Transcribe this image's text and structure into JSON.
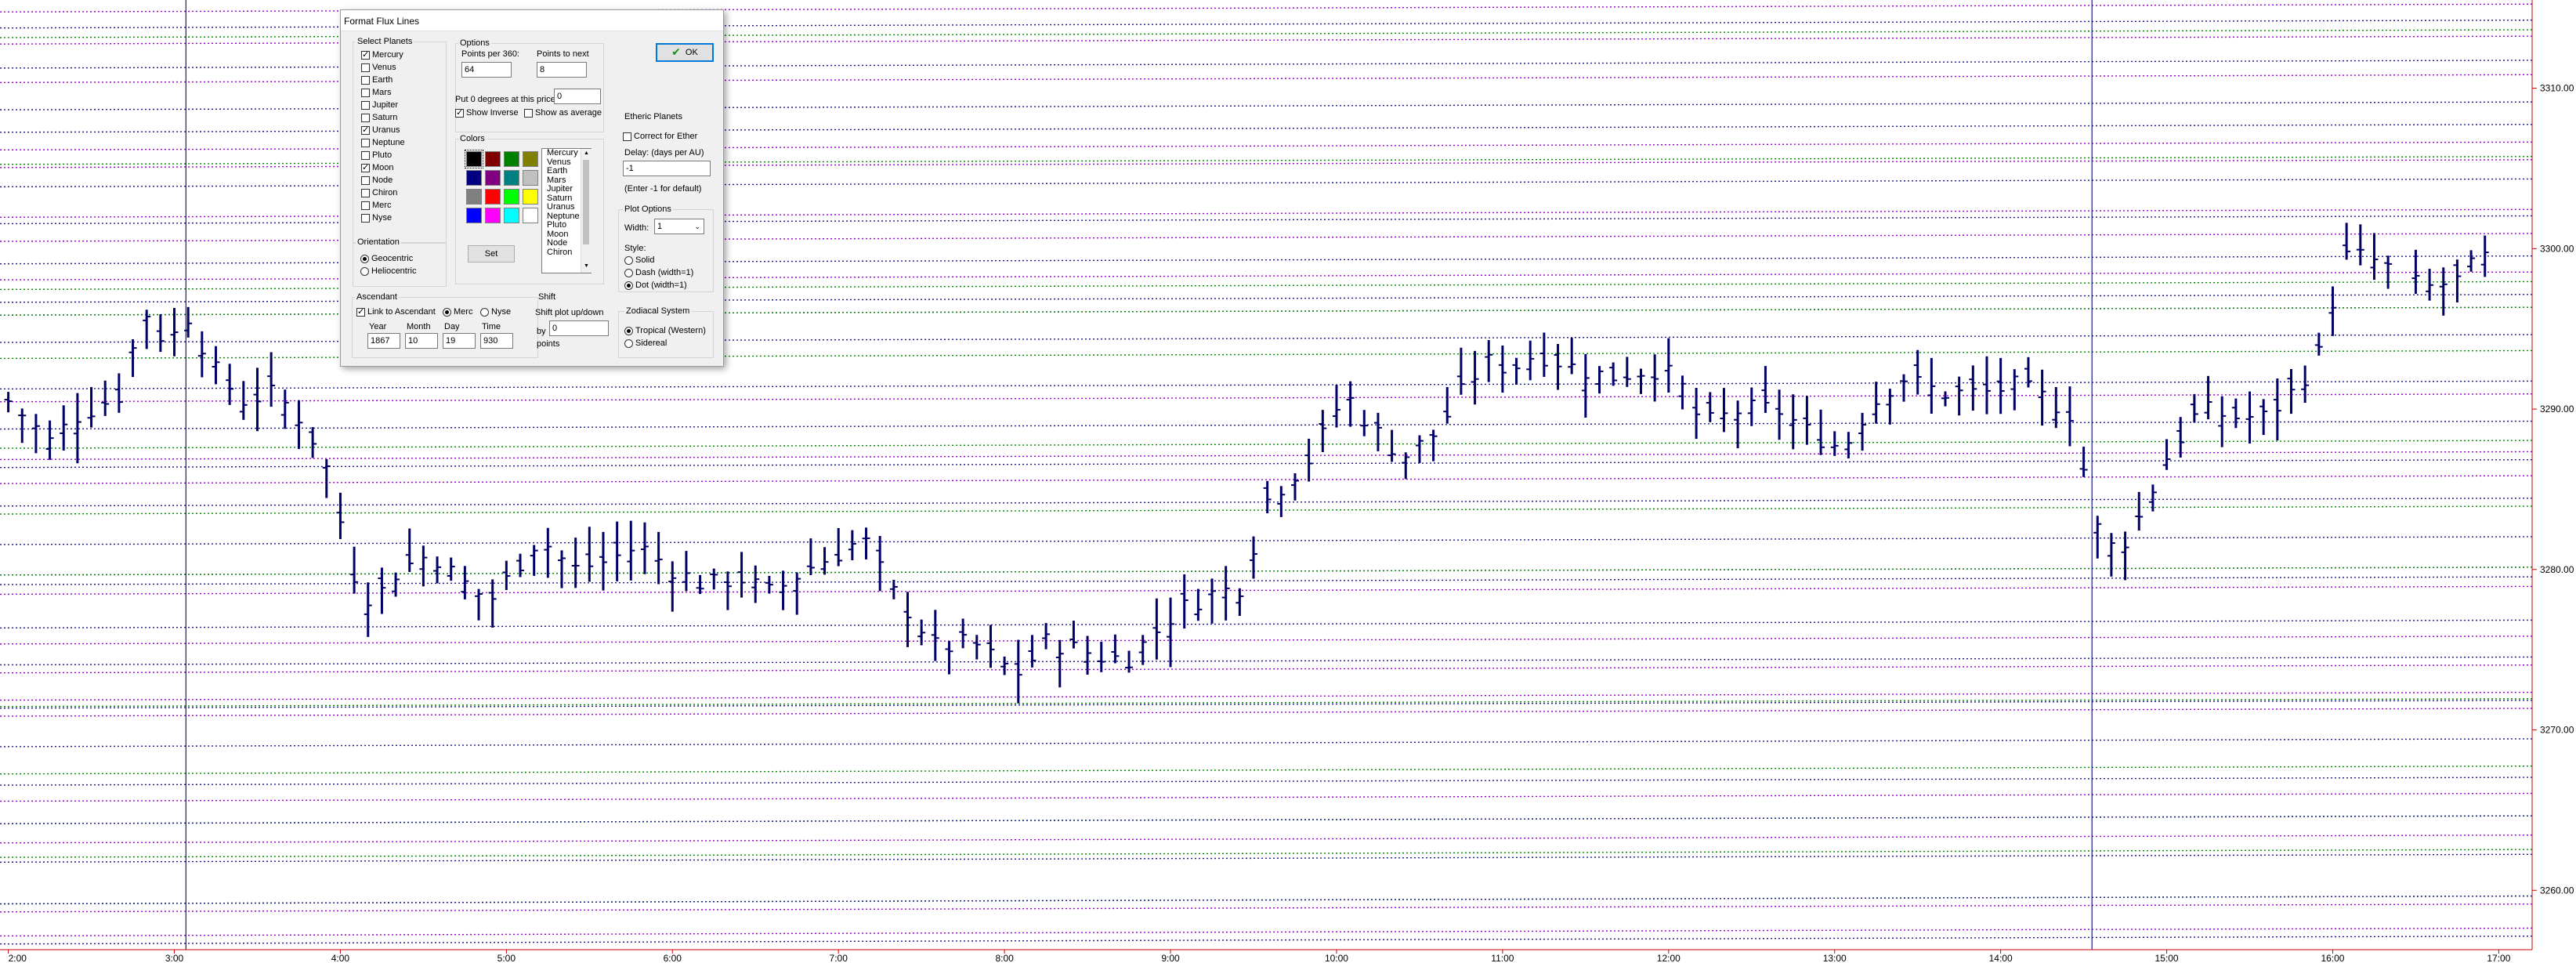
{
  "dialog": {
    "title": "Format Flux Lines",
    "ok_label": "OK",
    "select_planets": {
      "label": "Select Planets",
      "items": [
        {
          "name": "Mercury",
          "checked": true
        },
        {
          "name": "Venus",
          "checked": false
        },
        {
          "name": "Earth",
          "checked": false
        },
        {
          "name": "Mars",
          "checked": false
        },
        {
          "name": "Jupiter",
          "checked": false
        },
        {
          "name": "Saturn",
          "checked": false
        },
        {
          "name": "Uranus",
          "checked": true
        },
        {
          "name": "Neptune",
          "checked": false
        },
        {
          "name": "Pluto",
          "checked": false
        },
        {
          "name": "Moon",
          "checked": true
        },
        {
          "name": "Node",
          "checked": false
        },
        {
          "name": "Chiron",
          "checked": false
        },
        {
          "name": "Merc",
          "checked": false
        },
        {
          "name": "Nyse",
          "checked": false
        }
      ]
    },
    "orientation": {
      "label": "Orientation",
      "geocentric": "Geocentric",
      "heliocentric": "Heliocentric",
      "selected": "Geocentric"
    },
    "options": {
      "label": "Options",
      "points_per_360_label": "Points per 360:",
      "points_per_360": "64",
      "points_to_next_label": "Points to next",
      "points_to_next": "8",
      "put_zero_label": "Put 0 degrees at this price",
      "put_zero_value": "0",
      "show_inverse_label": "Show Inverse",
      "show_inverse": true,
      "show_average_label": "Show as average",
      "show_average": false
    },
    "colors": {
      "label": "Colors",
      "swatches": [
        "#000000",
        "#800000",
        "#008000",
        "#808000",
        "#000080",
        "#800080",
        "#008080",
        "#c0c0c0",
        "#808080",
        "#ff0000",
        "#00ff00",
        "#ffff00",
        "#0000ff",
        "#ff00ff",
        "#00ffff",
        "#ffffff"
      ],
      "set_label": "Set",
      "list": [
        "Mercury",
        "Venus",
        "Earth",
        "Mars",
        "Jupiter",
        "Saturn",
        "Uranus",
        "Neptune",
        "Pluto",
        "Moon",
        "Node",
        "Chiron"
      ]
    },
    "etheric": {
      "label": "Etheric Planets",
      "correct_label": "Correct for Ether",
      "correct": false,
      "delay_label": "Delay: (days per AU)",
      "delay_value": "-1",
      "hint": "(Enter -1 for default)"
    },
    "plot_options": {
      "label": "Plot Options",
      "width_label": "Width:",
      "width_value": "1",
      "style_label": "Style:",
      "solid": "Solid",
      "dash": "Dash (width=1)",
      "dot": "Dot (width=1)",
      "selected": "Dot (width=1)"
    },
    "ascendant": {
      "label": "Ascendant",
      "link_label": "Link to Ascendant",
      "link": true,
      "merc": "Merc",
      "nyse": "Nyse",
      "selected": "Merc",
      "year_label": "Year",
      "year": "1867",
      "month_label": "Month",
      "month": "10",
      "day_label": "Day",
      "day": "19",
      "time_label": "Time",
      "time": "930"
    },
    "shift": {
      "label": "Shift",
      "desc": "Shift plot up/down",
      "by_label": "by",
      "by_value": "0",
      "points_label": "points"
    },
    "zodiacal": {
      "label": "Zodiacal System",
      "tropical": "Tropical (Western)",
      "sidereal": "Sidereal",
      "selected": "Tropical (Western)"
    }
  },
  "chart_data": {
    "type": "ohlc",
    "x_tick_labels": [
      "2:00",
      "3:00",
      "4:00",
      "5:00",
      "6:00",
      "7:00",
      "8:00",
      "9:00",
      "10:00",
      "11:00",
      "12:00",
      "13:00",
      "14:00",
      "15:00",
      "16:00",
      "17:00"
    ],
    "y_tick_labels": [
      "3310.00",
      "3300.00",
      "3290.00",
      "3280.00",
      "3270.00",
      "3260.00"
    ],
    "y_ticks": [
      3310,
      3300,
      3290,
      3280,
      3270,
      3260
    ],
    "ylim": [
      3256.3,
      3315.5
    ],
    "x_range_hours": [
      1.95,
      17.05
    ],
    "grid": false,
    "bar_color": "#000066",
    "flux_line_colors": {
      "mercury": "#9900cc",
      "uranus": "#008800",
      "moon": "#1a1a8c"
    },
    "flux_lines": {
      "mercury_y": [
        3315.0,
        3313.0,
        3310.6,
        3306.4,
        3305.3,
        3302.2,
        3300.7,
        3298.3,
        3296.1,
        3290.7,
        3287.1,
        3285.6,
        3279.9,
        3278.7,
        3275.6,
        3273.8,
        3272.1,
        3271.1,
        3265.8,
        3263.2,
        3258.9,
        3257.4
      ],
      "uranus_y": [
        3313.4,
        3305.5,
        3297.7,
        3296.1,
        3293.4,
        3287.8,
        3283.7,
        3279.9,
        3271.7,
        3267.5,
        3264.4,
        3262.3,
        3259.4
      ],
      "moon_y": [
        3314.0,
        3311.5,
        3308.9,
        3307.5,
        3304.1,
        3301.8,
        3299.3,
        3296.9,
        3294.4,
        3291.5,
        3289.0,
        3286.6,
        3284.2,
        3281.8,
        3279.3,
        3276.6,
        3274.3,
        3271.6,
        3269.2,
        3266.8,
        3264.4,
        3262.0,
        3259.4,
        3256.9
      ]
    },
    "vertical_markers_hours": [
      3.07,
      14.55
    ],
    "bars_close_path": [
      [
        2.0,
        3290.5
      ],
      [
        2.25,
        3288.0
      ],
      [
        2.4,
        3289.5
      ],
      [
        2.7,
        3291.0
      ],
      [
        2.8,
        3296.5
      ],
      [
        2.95,
        3294.0
      ],
      [
        3.1,
        3296.0
      ],
      [
        3.2,
        3293.0
      ],
      [
        3.4,
        3290.5
      ],
      [
        3.6,
        3291.0
      ],
      [
        3.75,
        3289.5
      ],
      [
        3.9,
        3287.0
      ],
      [
        4.0,
        3283.0
      ],
      [
        4.1,
        3279.0
      ],
      [
        4.2,
        3278.0
      ],
      [
        4.35,
        3280.0
      ],
      [
        4.55,
        3281.0
      ],
      [
        4.7,
        3279.5
      ],
      [
        4.9,
        3278.0
      ],
      [
        5.05,
        3280.0
      ],
      [
        5.2,
        3282.0
      ],
      [
        5.4,
        3280.0
      ],
      [
        5.6,
        3280.5
      ],
      [
        5.8,
        3281.5
      ],
      [
        6.0,
        3280.0
      ],
      [
        6.2,
        3279.0
      ],
      [
        6.4,
        3279.5
      ],
      [
        6.6,
        3278.5
      ],
      [
        6.8,
        3280.0
      ],
      [
        7.0,
        3281.0
      ],
      [
        7.15,
        3282.0
      ],
      [
        7.3,
        3279.0
      ],
      [
        7.45,
        3277.0
      ],
      [
        7.6,
        3275.0
      ],
      [
        7.8,
        3275.5
      ],
      [
        8.0,
        3274.0
      ],
      [
        8.1,
        3273.5
      ],
      [
        8.25,
        3275.5
      ],
      [
        8.45,
        3275.0
      ],
      [
        8.6,
        3274.5
      ],
      [
        8.75,
        3274.5
      ],
      [
        8.9,
        3276.0
      ],
      [
        9.05,
        3277.5
      ],
      [
        9.25,
        3278.5
      ],
      [
        9.45,
        3279.0
      ],
      [
        9.55,
        3284.0
      ],
      [
        9.7,
        3285.5
      ],
      [
        9.85,
        3287.0
      ],
      [
        10.05,
        3291.0
      ],
      [
        10.2,
        3289.0
      ],
      [
        10.4,
        3287.0
      ],
      [
        10.6,
        3288.5
      ],
      [
        10.75,
        3291.0
      ],
      [
        10.9,
        3293.0
      ],
      [
        11.05,
        3292.5
      ],
      [
        11.2,
        3293.5
      ],
      [
        11.45,
        3292.5
      ],
      [
        11.65,
        3292.0
      ],
      [
        11.9,
        3292.5
      ],
      [
        12.05,
        3292.0
      ],
      [
        12.2,
        3289.0
      ],
      [
        12.45,
        3290.0
      ],
      [
        12.65,
        3290.0
      ],
      [
        12.85,
        3288.5
      ],
      [
        13.05,
        3287.5
      ],
      [
        13.2,
        3290.0
      ],
      [
        13.4,
        3292.0
      ],
      [
        13.65,
        3291.0
      ],
      [
        13.9,
        3291.0
      ],
      [
        14.1,
        3291.5
      ],
      [
        14.3,
        3290.5
      ],
      [
        14.45,
        3289.5
      ],
      [
        14.55,
        3283.0
      ],
      [
        14.7,
        3281.0
      ],
      [
        14.85,
        3283.5
      ],
      [
        15.0,
        3287.0
      ],
      [
        15.2,
        3290.0
      ],
      [
        15.4,
        3289.5
      ],
      [
        15.6,
        3289.5
      ],
      [
        15.8,
        3291.5
      ],
      [
        15.95,
        3294.0
      ],
      [
        16.05,
        3299.5
      ],
      [
        16.2,
        3299.5
      ],
      [
        16.3,
        3299.0
      ],
      [
        16.55,
        3297.5
      ],
      [
        16.75,
        3298.0
      ],
      [
        16.9,
        3299.5
      ],
      [
        17.0,
        3299.0
      ]
    ]
  }
}
